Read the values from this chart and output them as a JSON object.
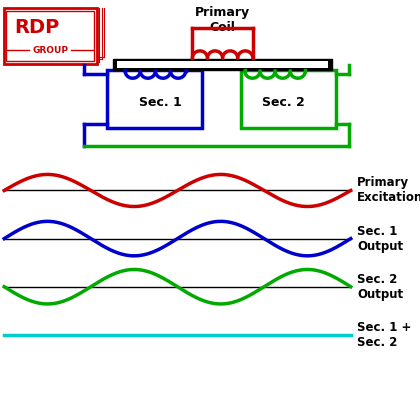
{
  "bg_color": "#ffffff",
  "fig_width": 4.2,
  "fig_height": 4.01,
  "dpi": 100,
  "primary_color": "#cc0000",
  "sec1_color": "#0000cc",
  "sec2_color": "#00aa00",
  "sum_color": "#00cccc",
  "black_color": "#000000",
  "label_fontsize": 8.5,
  "labels": [
    "Primary\nExcitation",
    "Sec. 1\nOutput",
    "Sec. 2\nOutput",
    "Sec. 1 +\nSec. 2"
  ]
}
